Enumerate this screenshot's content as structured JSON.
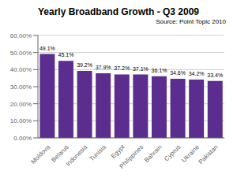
{
  "chart_data": {
    "type": "bar",
    "title": "Yearly Broadband Growth - Q3 2009",
    "annotations": [
      "Source: Point Topic 2010"
    ],
    "categories": [
      "Moldova",
      "Belarus",
      "Indonesia",
      "Tunisia",
      "Egypt",
      "Philippines",
      "Bahrain",
      "Cyprus",
      "Ukraine",
      "Pakistan"
    ],
    "values": [
      49.1,
      45.1,
      39.2,
      37.9,
      37.2,
      37.1,
      36.1,
      34.6,
      34.2,
      33.4
    ],
    "value_labels": [
      "49.1%",
      "45.1%",
      "39.2%",
      "37.9%",
      "37.2%",
      "37.1%",
      "36.1%",
      "34.6%",
      "34.2%",
      "33.4%"
    ],
    "data_labels": true,
    "color": "#5B2D8E",
    "ylim": [
      0,
      60
    ],
    "yticks": [
      {
        "value": 0,
        "label": "0.00%"
      },
      {
        "value": 10,
        "label": "10.00%"
      },
      {
        "value": 20,
        "label": "20.00%"
      },
      {
        "value": 30,
        "label": "30.00%"
      },
      {
        "value": 40,
        "label": "40.00%"
      },
      {
        "value": 50,
        "label": "50.00%"
      },
      {
        "value": 60,
        "label": "60.00%"
      }
    ],
    "grid": true
  }
}
